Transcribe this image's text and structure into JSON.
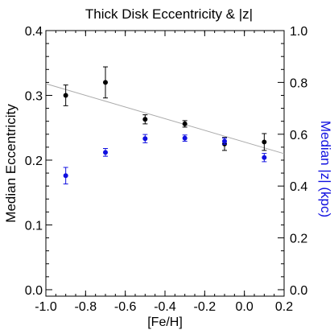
{
  "chart_data": {
    "type": "scatter",
    "title": "Thick Disk Eccentricity & |z|",
    "xlabel": "[Fe/H]",
    "ylabel_left": "Median Eccentricity",
    "ylabel_right": "Median |z| (kpc)",
    "xlim": [
      -1.0,
      0.2
    ],
    "ylim_left": [
      -0.01,
      0.4
    ],
    "ylim_right": [
      -0.025,
      1.0
    ],
    "x_ticks": [
      "-1.0",
      "-0.8",
      "-0.6",
      "-0.4",
      "-0.2",
      "0.0",
      "0.2"
    ],
    "x_tick_values": [
      -1.0,
      -0.8,
      -0.6,
      -0.4,
      -0.2,
      0.0,
      0.2
    ],
    "y_ticks_left": [
      "0.0",
      "0.1",
      "0.2",
      "0.3",
      "0.4"
    ],
    "y_tick_values_left": [
      0.0,
      0.1,
      0.2,
      0.3,
      0.4
    ],
    "y_ticks_right": [
      "0.0",
      "0.2",
      "0.4",
      "0.6",
      "0.8",
      "1.0"
    ],
    "y_tick_values_right": [
      0.0,
      0.2,
      0.4,
      0.6,
      0.8,
      1.0
    ],
    "grid": false,
    "colors": {
      "eccentricity": "#000000",
      "z": "#1010e0",
      "fit": "#aaaaaa",
      "right_label": "#1010e0"
    },
    "series": [
      {
        "axis": "left",
        "x": [
          -0.9,
          -0.7,
          -0.5,
          -0.3,
          -0.1,
          0.1
        ],
        "y": [
          0.3,
          0.32,
          0.263,
          0.256,
          0.225,
          0.228
        ],
        "err": [
          0.016,
          0.024,
          0.007,
          0.005,
          0.01,
          0.013
        ]
      },
      {
        "axis": "right",
        "x": [
          -0.9,
          -0.7,
          -0.5,
          -0.3,
          -0.1,
          0.1
        ],
        "y": [
          0.44,
          0.53,
          0.583,
          0.585,
          0.573,
          0.51
        ],
        "err": [
          0.032,
          0.015,
          0.016,
          0.012,
          0.012,
          0.016
        ]
      }
    ],
    "fit_line": {
      "axis": "left",
      "x": [
        -1.0,
        0.2
      ],
      "y": [
        0.318,
        0.21
      ]
    }
  }
}
